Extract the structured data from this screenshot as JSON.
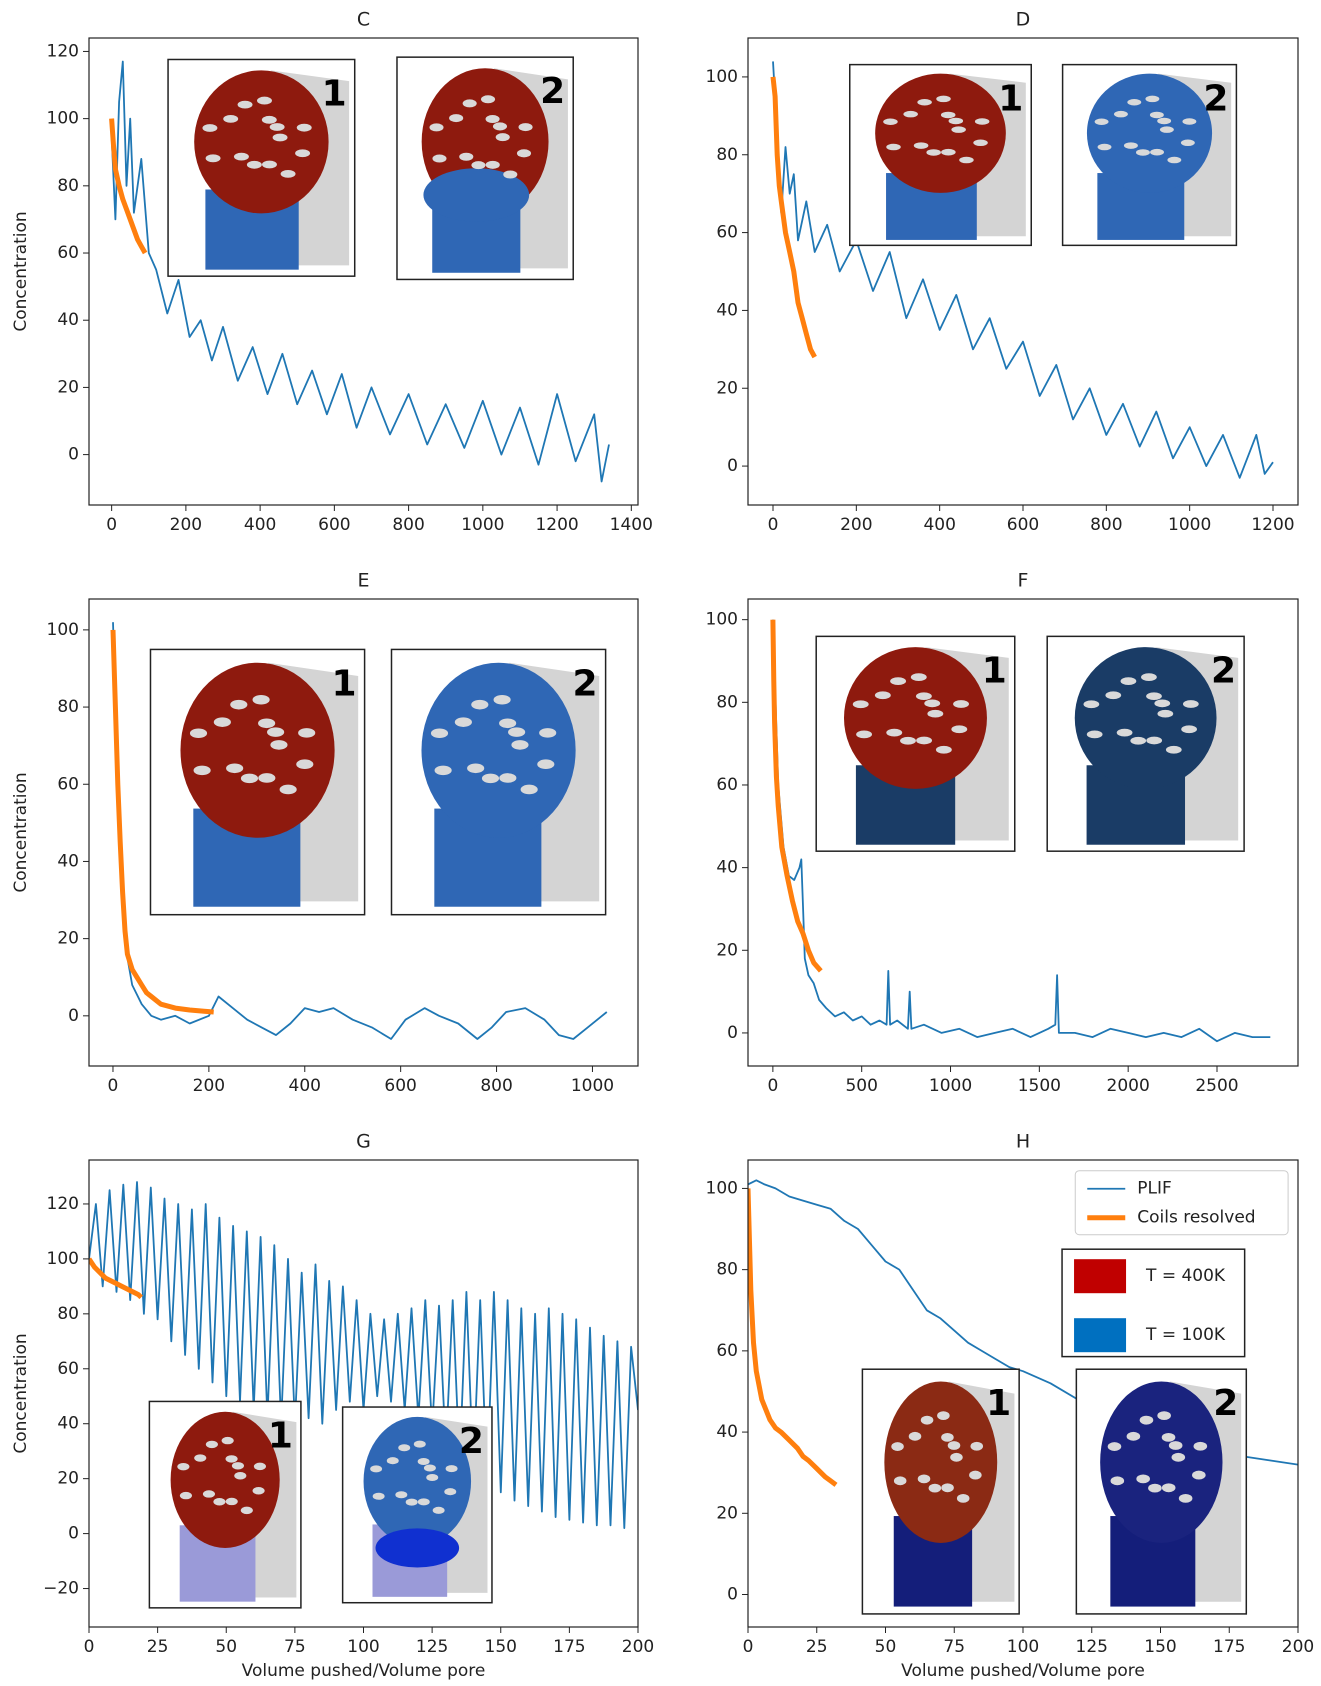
{
  "chart_data": [
    {
      "type": "line",
      "title": "C",
      "ylabel": "Concentration",
      "xlim": [
        -61,
        1418
      ],
      "ylim": [
        -15,
        124
      ],
      "xticks": [
        0,
        200,
        400,
        600,
        800,
        1000,
        1200,
        1400
      ],
      "yticks": [
        0,
        20,
        40,
        60,
        80,
        100,
        120
      ],
      "insets": [
        {
          "label": "1"
        },
        {
          "label": "2"
        }
      ],
      "series": [
        {
          "color": "#1f77b4",
          "x": [
            0,
            10,
            20,
            30,
            40,
            50,
            60,
            80,
            100,
            120,
            150,
            180,
            210,
            240,
            270,
            300,
            340,
            380,
            420,
            460,
            500,
            540,
            580,
            620,
            660,
            700,
            750,
            800,
            850,
            900,
            950,
            1000,
            1050,
            1100,
            1150,
            1200,
            1250,
            1300,
            1320,
            1340
          ],
          "values": [
            95,
            70,
            105,
            117,
            80,
            100,
            72,
            88,
            60,
            55,
            42,
            52,
            35,
            40,
            28,
            38,
            22,
            32,
            18,
            30,
            15,
            25,
            12,
            24,
            8,
            20,
            6,
            18,
            3,
            15,
            2,
            16,
            0,
            14,
            -3,
            18,
            -2,
            12,
            -8,
            3
          ]
        },
        {
          "color": "#ff7f0e",
          "x": [
            0,
            5,
            10,
            20,
            30,
            40,
            50,
            60,
            70,
            80,
            90
          ],
          "values": [
            100,
            92,
            85,
            80,
            76,
            73,
            70,
            67,
            64,
            62,
            60
          ]
        }
      ]
    },
    {
      "type": "line",
      "title": "D",
      "xlim": [
        -60,
        1260
      ],
      "ylim": [
        -10,
        110
      ],
      "xticks": [
        0,
        200,
        400,
        600,
        800,
        1000,
        1200
      ],
      "yticks": [
        0,
        20,
        40,
        60,
        80,
        100
      ],
      "insets": [
        {
          "label": "1"
        },
        {
          "label": "2"
        }
      ],
      "series": [
        {
          "color": "#1f77b4",
          "x": [
            0,
            10,
            20,
            30,
            40,
            50,
            60,
            80,
            100,
            130,
            160,
            200,
            240,
            280,
            320,
            360,
            400,
            440,
            480,
            520,
            560,
            600,
            640,
            680,
            720,
            760,
            800,
            840,
            880,
            920,
            960,
            1000,
            1040,
            1080,
            1120,
            1160,
            1180,
            1200
          ],
          "values": [
            104,
            85,
            65,
            82,
            70,
            75,
            58,
            68,
            55,
            62,
            50,
            58,
            45,
            55,
            38,
            48,
            35,
            44,
            30,
            38,
            25,
            32,
            18,
            26,
            12,
            20,
            8,
            16,
            5,
            14,
            2,
            10,
            0,
            8,
            -3,
            8,
            -2,
            1
          ]
        },
        {
          "color": "#ff7f0e",
          "x": [
            0,
            5,
            10,
            15,
            20,
            30,
            40,
            50,
            60,
            70,
            80,
            90,
            100
          ],
          "values": [
            100,
            95,
            80,
            72,
            68,
            60,
            55,
            50,
            42,
            38,
            34,
            30,
            28
          ]
        }
      ]
    },
    {
      "type": "line",
      "title": "E",
      "ylabel": "Concentration",
      "xlim": [
        -50,
        1095
      ],
      "ylim": [
        -13,
        108
      ],
      "xticks": [
        0,
        200,
        400,
        600,
        800,
        1000
      ],
      "yticks": [
        0,
        20,
        40,
        60,
        80,
        100
      ],
      "insets": [
        {
          "label": "1"
        },
        {
          "label": "2"
        }
      ],
      "series": [
        {
          "color": "#1f77b4",
          "x": [
            0,
            10,
            20,
            30,
            40,
            60,
            80,
            100,
            130,
            160,
            200,
            220,
            250,
            280,
            310,
            340,
            370,
            400,
            430,
            460,
            500,
            540,
            580,
            610,
            650,
            680,
            720,
            760,
            790,
            820,
            860,
            900,
            930,
            960,
            990,
            1030
          ],
          "values": [
            102,
            60,
            30,
            15,
            8,
            3,
            0,
            -1,
            0,
            -2,
            0,
            5,
            2,
            -1,
            -3,
            -5,
            -2,
            2,
            1,
            2,
            -1,
            -3,
            -6,
            -1,
            2,
            0,
            -2,
            -6,
            -3,
            1,
            2,
            -1,
            -5,
            -6,
            -3,
            1
          ]
        },
        {
          "color": "#ff7f0e",
          "x": [
            0,
            5,
            10,
            15,
            20,
            25,
            30,
            40,
            50,
            60,
            70,
            80,
            100,
            130,
            160,
            190,
            210
          ],
          "values": [
            100,
            80,
            60,
            45,
            32,
            22,
            16,
            12,
            10,
            8,
            6,
            5,
            3,
            2,
            1.5,
            1.2,
            1
          ]
        }
      ]
    },
    {
      "type": "line",
      "title": "F",
      "xlim": [
        -140,
        2956
      ],
      "ylim": [
        -8,
        105
      ],
      "xticks": [
        0,
        500,
        1000,
        1500,
        2000,
        2500
      ],
      "yticks": [
        0,
        20,
        40,
        60,
        80,
        100
      ],
      "insets": [
        {
          "label": "1"
        },
        {
          "label": "2"
        }
      ],
      "series": [
        {
          "color": "#1f77b4",
          "x": [
            0,
            30,
            60,
            90,
            120,
            150,
            160,
            170,
            180,
            200,
            230,
            260,
            300,
            350,
            400,
            450,
            500,
            550,
            600,
            640,
            650,
            660,
            700,
            760,
            770,
            780,
            850,
            950,
            1050,
            1150,
            1250,
            1350,
            1450,
            1550,
            1590,
            1600,
            1610,
            1700,
            1800,
            1900,
            2000,
            2100,
            2200,
            2300,
            2400,
            2500,
            2600,
            2700,
            2800
          ],
          "values": [
            100,
            60,
            45,
            38,
            37,
            40,
            42,
            30,
            18,
            14,
            12,
            8,
            6,
            4,
            5,
            3,
            4,
            2,
            3,
            2,
            15,
            2,
            3,
            1,
            10,
            1,
            2,
            0,
            1,
            -1,
            0,
            1,
            -1,
            1,
            2,
            14,
            0,
            0,
            -1,
            1,
            0,
            -1,
            0,
            -1,
            1,
            -2,
            0,
            -1,
            -1
          ]
        },
        {
          "color": "#ff7f0e",
          "x": [
            0,
            5,
            10,
            20,
            30,
            50,
            80,
            110,
            140,
            170,
            200,
            230,
            270
          ],
          "values": [
            100,
            85,
            75,
            62,
            55,
            45,
            38,
            32,
            27,
            24,
            20,
            17,
            15
          ]
        }
      ]
    },
    {
      "type": "line",
      "title": "G",
      "ylabel": "Concentration",
      "xlabel": "Volume pushed/Volume pore",
      "xlim": [
        0,
        200
      ],
      "ylim": [
        -34,
        136
      ],
      "xticks": [
        0,
        25,
        50,
        75,
        100,
        125,
        150,
        175,
        200
      ],
      "yticks": [
        {
          "value": -20,
          "label": "−20"
        },
        0,
        20,
        40,
        60,
        80,
        100,
        120
      ],
      "insets": [
        {
          "label": "1"
        },
        {
          "label": "2"
        }
      ],
      "series": [
        {
          "color": "#1f77b4",
          "x": [
            0,
            2.5,
            5,
            7.5,
            10,
            12.5,
            15,
            17.5,
            20,
            22.5,
            25,
            27.5,
            30,
            32.5,
            35,
            37.5,
            40,
            42.5,
            45,
            47.5,
            50,
            52.5,
            55,
            57.5,
            60,
            62.5,
            65,
            67.5,
            70,
            72.5,
            75,
            77.5,
            80,
            82.5,
            85,
            87.5,
            90,
            92.5,
            95,
            97.5,
            100,
            102.5,
            105,
            107.5,
            110,
            112.5,
            115,
            117.5,
            120,
            122.5,
            125,
            127.5,
            130,
            132.5,
            135,
            137.5,
            140,
            142.5,
            145,
            147.5,
            150,
            152.5,
            155,
            157.5,
            160,
            162.5,
            165,
            167.5,
            170,
            172.5,
            175,
            177.5,
            180,
            182.5,
            185,
            187.5,
            190,
            192.5,
            195,
            197.5,
            200
          ],
          "values": [
            100,
            120,
            90,
            125,
            88,
            127,
            85,
            128,
            80,
            126,
            78,
            122,
            70,
            120,
            65,
            118,
            60,
            120,
            55,
            115,
            50,
            112,
            48,
            110,
            45,
            108,
            42,
            105,
            40,
            100,
            40,
            95,
            42,
            98,
            40,
            92,
            45,
            90,
            48,
            85,
            45,
            80,
            50,
            78,
            48,
            80,
            45,
            82,
            42,
            85,
            38,
            83,
            30,
            85,
            25,
            88,
            22,
            85,
            18,
            88,
            15,
            85,
            12,
            82,
            10,
            80,
            8,
            82,
            6,
            80,
            5,
            78,
            4,
            75,
            3,
            72,
            3,
            70,
            2,
            68,
            45
          ]
        },
        {
          "color": "#ff7f0e",
          "x": [
            0,
            2,
            4,
            6,
            8,
            10,
            12,
            14,
            16,
            18,
            19
          ],
          "values": [
            100,
            97,
            95,
            93,
            92,
            91,
            90,
            89,
            88,
            87,
            86
          ]
        }
      ]
    },
    {
      "type": "line",
      "title": "H",
      "xlabel": "Volume pushed/Volume pore",
      "legend": "upper right",
      "xlim": [
        0,
        200
      ],
      "ylim": [
        -8,
        107
      ],
      "xticks": [
        0,
        25,
        50,
        75,
        100,
        125,
        150,
        175,
        200
      ],
      "yticks": [
        0,
        20,
        40,
        60,
        80,
        100
      ],
      "insets": [
        {
          "label": "1"
        },
        {
          "label": "2"
        }
      ],
      "temperature_legend": [
        {
          "label": "T = 400K",
          "color": "#c00000"
        },
        {
          "label": "T = 100K",
          "color": "#0070c0"
        }
      ],
      "series": [
        {
          "name": "PLIF",
          "color": "#1f77b4",
          "x": [
            0,
            3,
            6,
            10,
            15,
            20,
            25,
            30,
            35,
            40,
            45,
            50,
            55,
            60,
            65,
            70,
            75,
            80,
            85,
            90,
            95,
            100,
            110,
            120,
            130,
            140,
            150,
            160,
            170,
            180,
            190,
            200
          ],
          "values": [
            101,
            102,
            101,
            100,
            98,
            97,
            96,
            95,
            92,
            90,
            86,
            82,
            80,
            75,
            70,
            68,
            65,
            62,
            60,
            58,
            56,
            55,
            52,
            48,
            45,
            42,
            40,
            37,
            35,
            34,
            33,
            32
          ]
        },
        {
          "name": "Coils resolved",
          "color": "#ff7f0e",
          "x": [
            0,
            1,
            2,
            3,
            5,
            8,
            10,
            12,
            15,
            18,
            20,
            22,
            25,
            28,
            30,
            32
          ],
          "values": [
            100,
            75,
            62,
            55,
            48,
            43,
            41,
            40,
            38,
            36,
            34,
            33,
            31,
            29,
            28,
            27
          ]
        }
      ]
    }
  ]
}
